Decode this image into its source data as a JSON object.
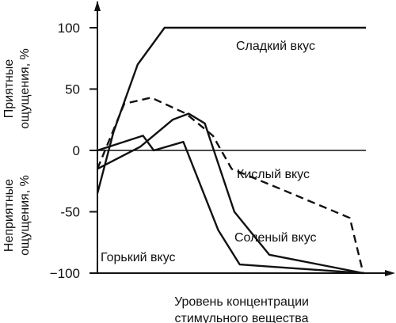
{
  "chart_data": {
    "type": "line",
    "xlabel": [
      "Уровень концентрации",
      "стимульного вещества"
    ],
    "ylabel_top": [
      "Приятные",
      "ощущения, %"
    ],
    "ylabel_bottom": [
      "Неприятные",
      "ощущения, %"
    ],
    "ylim": [
      -100,
      100
    ],
    "xlim": [
      0,
      10
    ],
    "yticks": [
      "100",
      "50",
      "0",
      "-50",
      "−100"
    ],
    "ytick_values": [
      100,
      50,
      0,
      -50,
      -100
    ],
    "grid": false,
    "colors": {
      "line": "#111111",
      "background": "#ffffff"
    },
    "series": [
      {
        "name": "Сладкий вкус",
        "dash": "solid",
        "x": [
          0,
          0.6,
          1.5,
          2.5,
          10
        ],
        "y": [
          -35,
          15,
          70,
          100,
          100
        ]
      },
      {
        "name": "Кислый вкус",
        "dash": "dashed",
        "x": [
          0,
          1.0,
          2.0,
          3.3,
          4.3,
          5.0,
          7.0,
          9.4,
          9.9
        ],
        "y": [
          -15,
          38,
          43,
          30,
          12,
          -15,
          -33,
          -55,
          -100
        ]
      },
      {
        "name": "Соленый вкус",
        "dash": "solid",
        "x": [
          0,
          1.6,
          2.8,
          3.4,
          4.0,
          5.1,
          6.4,
          9.9
        ],
        "y": [
          -15,
          3,
          25,
          30,
          22,
          -50,
          -85,
          -100
        ]
      },
      {
        "name": "Горький вкус",
        "dash": "solid",
        "x": [
          0,
          1.7,
          2.1,
          3.2,
          4.5,
          5.3,
          9.9
        ],
        "y": [
          0,
          12,
          0,
          7,
          -65,
          -93,
          -100
        ]
      }
    ]
  }
}
